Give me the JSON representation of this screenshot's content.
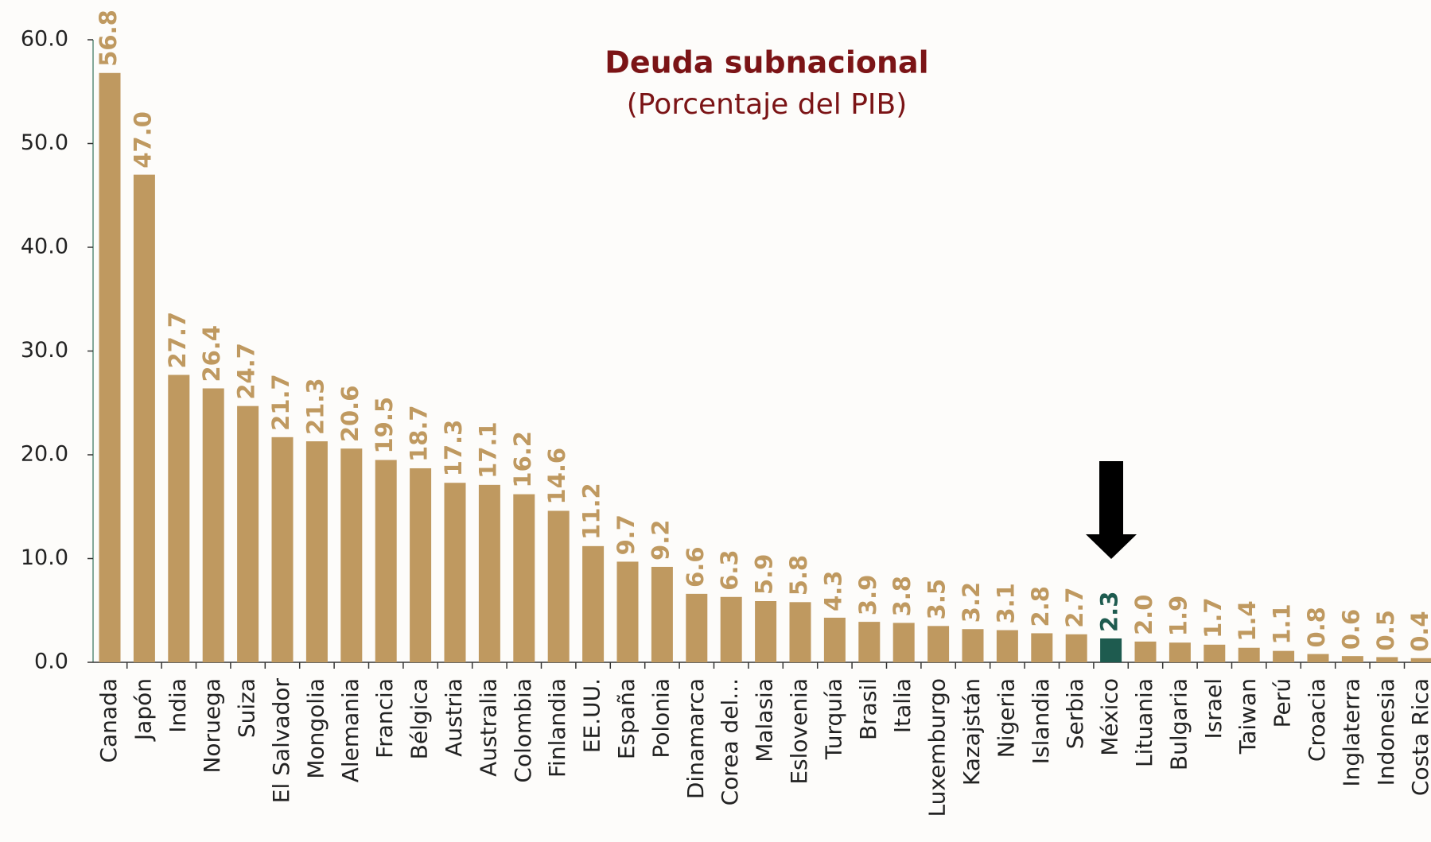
{
  "chart_data": {
    "type": "bar",
    "title": "Deuda subnacional",
    "subtitle": "(Porcentaje del PIB)",
    "categories": [
      "Canada",
      "Japón",
      "India",
      "Noruega",
      "Suiza",
      "El Salvador",
      "Mongolia",
      "Alemania",
      "Francia",
      "Bélgica",
      "Austria",
      "Australia",
      "Colombia",
      "Finlandia",
      "EE.UU.",
      "España",
      "Polonia",
      "Dinamarca",
      "Corea del...",
      "Malasia",
      "Eslovenia",
      "Turquía",
      "Brasil",
      "Italia",
      "Luxemburgo",
      "Kazajstán",
      "Nigeria",
      "Islandia",
      "Serbia",
      "México",
      "Lituania",
      "Bulgaria",
      "Israel",
      "Taiwan",
      "Perú",
      "Croacia",
      "Inglaterra",
      "Indonesia",
      "Costa Rica"
    ],
    "values": [
      56.8,
      47.0,
      27.7,
      26.4,
      24.7,
      21.7,
      21.3,
      20.6,
      19.5,
      18.7,
      17.3,
      17.1,
      16.2,
      14.6,
      11.2,
      9.7,
      9.2,
      6.6,
      6.3,
      5.9,
      5.8,
      4.3,
      3.9,
      3.8,
      3.5,
      3.2,
      3.1,
      2.8,
      2.7,
      2.3,
      2.0,
      1.9,
      1.7,
      1.4,
      1.1,
      0.8,
      0.6,
      0.5,
      0.4
    ],
    "value_labels": [
      "56.8",
      "47.0",
      "27.7",
      "26.4",
      "24.7",
      "21.7",
      "21.3",
      "20.6",
      "19.5",
      "18.7",
      "17.3",
      "17.1",
      "16.2",
      "14.6",
      "11.2",
      "9.7",
      "9.2",
      "6.6",
      "6.3",
      "5.9",
      "5.8",
      "4.3",
      "3.9",
      "3.8",
      "3.5",
      "3.2",
      "3.1",
      "2.8",
      "2.7",
      "2.3",
      "2.0",
      "1.9",
      "1.7",
      "1.4",
      "1.1",
      "0.8",
      "0.6",
      "0.5",
      "0.4"
    ],
    "colors": [
      "#bf9960",
      "#bf9960",
      "#bf9960",
      "#bf9960",
      "#bf9960",
      "#bf9960",
      "#bf9960",
      "#bf9960",
      "#bf9960",
      "#bf9960",
      "#bf9960",
      "#bf9960",
      "#bf9960",
      "#bf9960",
      "#bf9960",
      "#bf9960",
      "#bf9960",
      "#bf9960",
      "#bf9960",
      "#bf9960",
      "#bf9960",
      "#bf9960",
      "#bf9960",
      "#bf9960",
      "#bf9960",
      "#bf9960",
      "#bf9960",
      "#bf9960",
      "#bf9960",
      "#1e5b4f",
      "#bf9960",
      "#bf9960",
      "#bf9960",
      "#bf9960",
      "#bf9960",
      "#bf9960",
      "#bf9960",
      "#bf9960",
      "#bf9960"
    ],
    "ylim": [
      0,
      60
    ],
    "yticks": [
      {
        "value": 0,
        "label": "0.0"
      },
      {
        "value": 10,
        "label": "10.0"
      },
      {
        "value": 20,
        "label": "20.0"
      },
      {
        "value": 30,
        "label": "30.0"
      },
      {
        "value": 40,
        "label": "40.0"
      },
      {
        "value": 50,
        "label": "50.0"
      },
      {
        "value": 60,
        "label": "60.0"
      }
    ]
  }
}
